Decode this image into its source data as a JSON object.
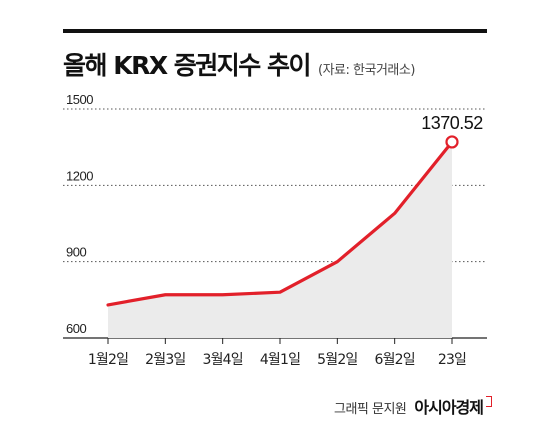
{
  "header": {
    "title": "올해 KRX 증권지수 추이",
    "source": "(자료: 한국거래소)"
  },
  "footer": {
    "credit": "그래픽 문지원",
    "brand": "아시아경제"
  },
  "colors": {
    "line": "#e2202a",
    "area": "#ebebeb",
    "grid": "#555555",
    "text": "#222222"
  },
  "chart_data": {
    "type": "area",
    "categories": [
      "1월2일",
      "2월3일",
      "3월4일",
      "4월1일",
      "5월2일",
      "6월2일",
      "23일"
    ],
    "series": [
      {
        "values": [
          730,
          770,
          770,
          780,
          900,
          1090,
          1370.52
        ]
      }
    ],
    "y_ticks": [
      600,
      900,
      1200,
      1500
    ],
    "ylim": [
      600,
      1500
    ],
    "grid": "dotted-horizontal",
    "annotation": {
      "index": 6,
      "text": "1370.52"
    }
  }
}
